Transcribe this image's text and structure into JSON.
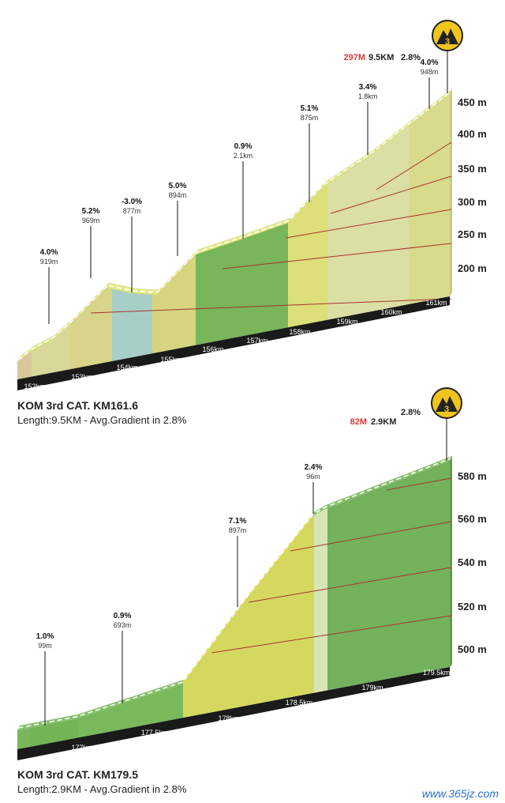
{
  "chart_data": [
    {
      "type": "area",
      "title": "KOM 3rd CAT.  KM161.6",
      "subtitle": "Length:9.5KM - Avg.Gradient in 2.8%",
      "summary": {
        "elev": "297M",
        "dist": "9.5KM",
        "grade": "2.8%"
      },
      "badge": "3",
      "ylabels": [
        "450 m",
        "400 m",
        "350 m",
        "300 m",
        "250 m",
        "200 m"
      ],
      "xlabels": [
        "152km",
        "153km",
        "154km",
        "155km",
        "156km",
        "157km",
        "158km",
        "159km",
        "160km",
        "161km"
      ],
      "segments": [
        {
          "grade": "4.0%",
          "length": "919m"
        },
        {
          "grade": "5.2%",
          "length": "969m"
        },
        {
          "grade": "-3.0%",
          "length": "877m"
        },
        {
          "grade": "5.0%",
          "length": "894m"
        },
        {
          "grade": "0.9%",
          "length": "2.1km"
        },
        {
          "grade": "5.1%",
          "length": "875m"
        },
        {
          "grade": "3.4%",
          "length": "1.8km"
        },
        {
          "grade": "4.0%",
          "length": "948m"
        }
      ]
    },
    {
      "type": "area",
      "title": "KOM 3rd CAT.  KM179.5",
      "subtitle": "Length:2.9KM - Avg.Gradient in 2.8%",
      "summary": {
        "elev": "82M",
        "dist": "2.9KM",
        "grade": "2.8%"
      },
      "badge": "3",
      "ylabels": [
        "580 m",
        "560 m",
        "540 m",
        "520 m",
        "500 m"
      ],
      "xlabels": [
        "177km",
        "177.5km",
        "178km",
        "178.5km",
        "179km",
        "179.5km"
      ],
      "segments": [
        {
          "grade": "1.0%",
          "length": "99m"
        },
        {
          "grade": "0.9%",
          "length": "693m"
        },
        {
          "grade": "7.1%",
          "length": "897m"
        },
        {
          "grade": "2.4%",
          "length": "96m"
        }
      ]
    }
  ],
  "watermark": "www.365jz.com"
}
